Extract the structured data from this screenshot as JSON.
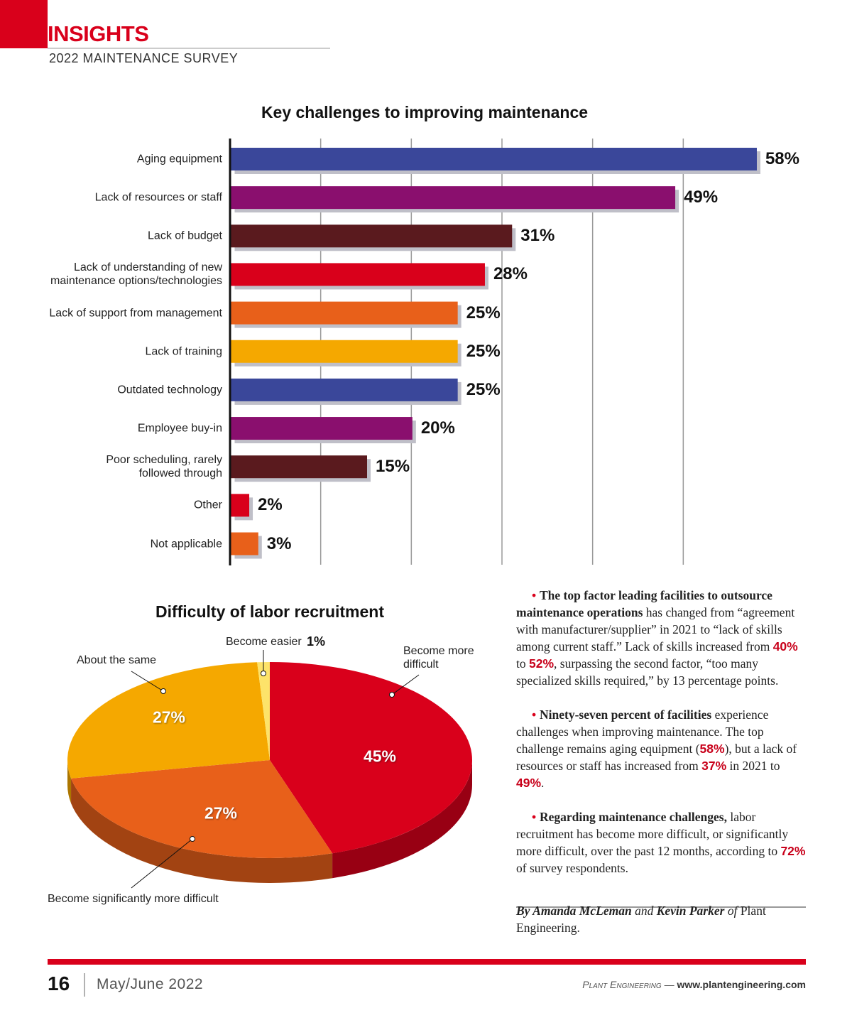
{
  "header": {
    "title": "INSIGHTS",
    "subtitle": "2022 MAINTENANCE SURVEY"
  },
  "chart_data": [
    {
      "type": "bar",
      "orientation": "horizontal",
      "title": "Key challenges to improving maintenance",
      "categories": [
        "Aging equipment",
        "Lack of resources or staff",
        "Lack of budget",
        "Lack of understanding of new\nmaintenance options/technologies",
        "Lack of support from management",
        "Lack of training",
        "Outdated technology",
        "Employee buy-in",
        "Poor scheduling, rarely\nfollowed through",
        "Other",
        "Not applicable"
      ],
      "values": [
        58,
        49,
        31,
        28,
        25,
        25,
        25,
        20,
        15,
        2,
        3
      ],
      "value_labels": [
        "58%",
        "49%",
        "31%",
        "28%",
        "25%",
        "25%",
        "25%",
        "20%",
        "15%",
        "2%",
        "3%"
      ],
      "colors": [
        "#3a479a",
        "#8a0f6e",
        "#5a1a1e",
        "#d9001b",
        "#e8601a",
        "#f5a800",
        "#3a479a",
        "#8a0f6e",
        "#5a1a1e",
        "#d9001b",
        "#e8601a"
      ],
      "xlim": [
        0,
        60
      ],
      "xticks": [
        0,
        10,
        20,
        30,
        40,
        50
      ],
      "grid": true
    },
    {
      "type": "pie",
      "title": "Difficulty of labor recruitment",
      "categories": [
        "Become more\ndifficult",
        "Become significantly more difficult",
        "About the same",
        "Become easier"
      ],
      "values": [
        45,
        27,
        27,
        1
      ],
      "value_labels": [
        "45%",
        "27%",
        "27%",
        "1%"
      ],
      "colors": [
        "#d9001b",
        "#e8601a",
        "#f5a800",
        "#fde36a"
      ]
    }
  ],
  "article": {
    "paragraphs": [
      [
        {
          "text": "The top factor leading facilities to outsource maintenance operations",
          "style": "bold"
        },
        {
          "text": " has changed from “agreement with manufacturer/supplier” in 2021 to “lack of skills among current staff.” Lack of skills increased from ",
          "style": "plain"
        },
        {
          "text": "40%",
          "style": "highlight"
        },
        {
          "text": " to ",
          "style": "plain"
        },
        {
          "text": "52%",
          "style": "highlight"
        },
        {
          "text": ", surpassing the second factor, “too many specialized skills required,” by 13 percentage points.",
          "style": "plain"
        }
      ],
      [
        {
          "text": "Ninety-seven percent of facilities",
          "style": "bold"
        },
        {
          "text": " experience challenges when improving maintenance. The top challenge remains aging equipment (",
          "style": "plain"
        },
        {
          "text": "58%",
          "style": "highlight"
        },
        {
          "text": "), but a lack of resources or staff has increased from ",
          "style": "plain"
        },
        {
          "text": "37%",
          "style": "highlight"
        },
        {
          "text": " in 2021 to ",
          "style": "plain"
        },
        {
          "text": "49%",
          "style": "highlight"
        },
        {
          "text": ".",
          "style": "plain"
        }
      ],
      [
        {
          "text": "Regarding maintenance challenges,",
          "style": "bold"
        },
        {
          "text": " labor recruitment has become more difficult, or significantly more difficult, over the past 12 months, according to ",
          "style": "plain"
        },
        {
          "text": "72%",
          "style": "highlight"
        },
        {
          "text": " of survey respondents.",
          "style": "plain"
        }
      ]
    ],
    "byline": [
      {
        "text": "By Amanda McLeman",
        "style": "bold-italic"
      },
      {
        "text": " and ",
        "style": "italic"
      },
      {
        "text": "Kevin Parker",
        "style": "bold-italic"
      },
      {
        "text": " of",
        "style": "italic"
      },
      {
        "text": " Plant Engineering.",
        "style": "plain"
      }
    ]
  },
  "footer": {
    "page_number": "16",
    "issue": "May/June 2022",
    "publication": "Plant Engineering",
    "separator": "—",
    "url": "www.plantengineering.com"
  }
}
